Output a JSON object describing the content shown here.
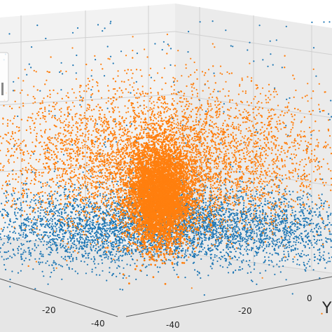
{
  "chart_data": {
    "type": "scatter",
    "projection": "3d",
    "grid": true,
    "legend": "top-left, partially cut off at left edge",
    "axes": {
      "x": {
        "label": "",
        "ticks": [
          -20,
          -40
        ]
      },
      "y": {
        "label": "Y",
        "ticks": [
          -40,
          -20,
          0
        ]
      },
      "z": {
        "label": "",
        "ticks": []
      }
    },
    "series": [
      {
        "color": "#1f77b4",
        "approx_points": 5200,
        "distribution": "wide cloud concentrated near the bottom of the z range, sparse points scattered high"
      },
      {
        "color": "#ff7f0e",
        "approx_points": 11000,
        "distribution": "dense central column with a broad cloud above the blue layer"
      }
    ]
  }
}
